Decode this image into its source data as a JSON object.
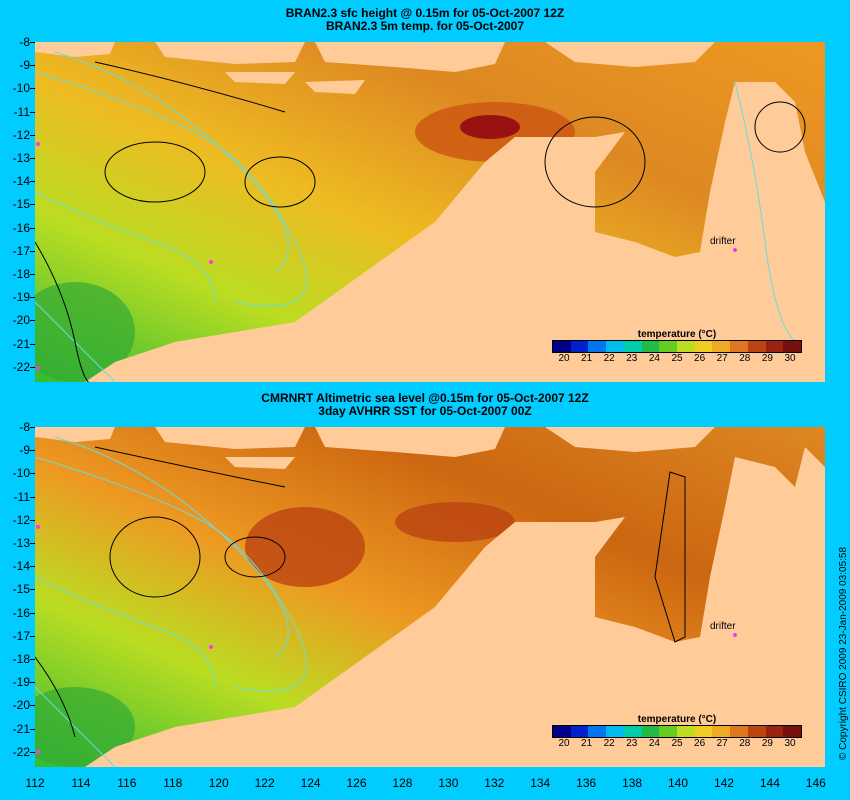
{
  "panels": [
    {
      "title_line1": "BRAN2.3 sfc height @ 0.15m for 05-Oct-2007 12Z",
      "title_line2": "BRAN2.3 5m temp. for 05-Oct-2007"
    },
    {
      "title_line1": "CMRNRT Altimetric sea level  @0.15m  for 05-Oct-2007 12Z",
      "title_line2": "3day AVHRR SST for 05-Oct-2007 00Z"
    }
  ],
  "y_axis_labels": [
    "-8",
    "-9",
    "-10",
    "-11",
    "-12",
    "-13",
    "-14",
    "-15",
    "-16",
    "-17",
    "-18",
    "-19",
    "-20",
    "-21",
    "-22"
  ],
  "x_axis_labels": [
    "112",
    "114",
    "116",
    "118",
    "120",
    "122",
    "124",
    "126",
    "128",
    "130",
    "132",
    "134",
    "136",
    "138",
    "140",
    "142",
    "144",
    "146"
  ],
  "legend": {
    "title": "temperature (°C)",
    "ticks": [
      "20",
      "21",
      "22",
      "23",
      "24",
      "25",
      "26",
      "27",
      "28",
      "29",
      "30"
    ]
  },
  "drifter_label": "drifter",
  "copyright": "© Copyright CSIRO 2009   23-Jan-2009 03:05:58",
  "colors": {
    "background": "#00ccff",
    "land": "#ffcc99",
    "contour": "#66dddd"
  }
}
